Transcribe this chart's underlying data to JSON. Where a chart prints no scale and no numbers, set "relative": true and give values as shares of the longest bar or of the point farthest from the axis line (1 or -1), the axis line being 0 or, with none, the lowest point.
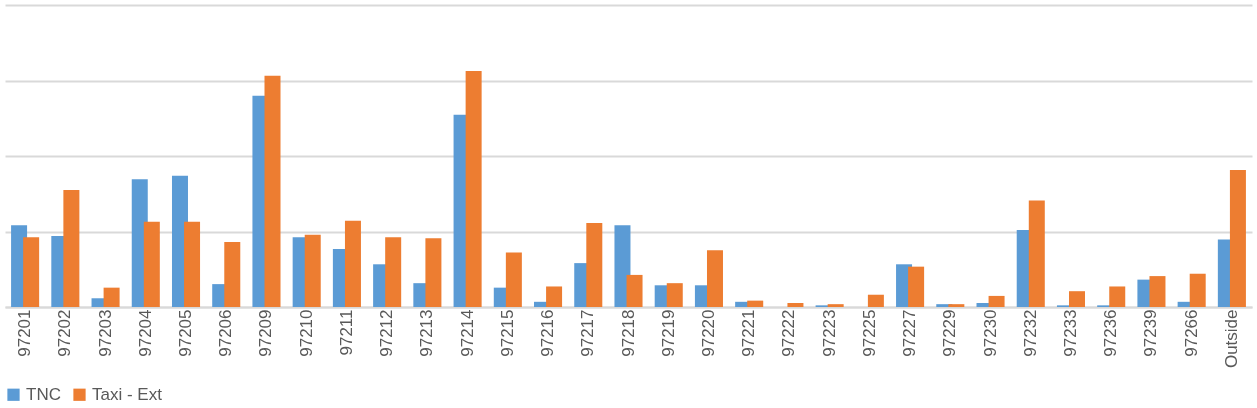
{
  "chart_data": {
    "type": "bar",
    "relative": true,
    "grid": "y",
    "legend": "bottom",
    "categories": [
      "97201",
      "97202",
      "97203",
      "97204",
      "97205",
      "97206",
      "97209",
      "97210",
      "97211",
      "97212",
      "97213",
      "97214",
      "97215",
      "97216",
      "97217",
      "97218",
      "97219",
      "97220",
      "97221",
      "97222",
      "97223",
      "97225",
      "97227",
      "97229",
      "97230",
      "97232",
      "97233",
      "97236",
      "97239",
      "97266",
      "Outside"
    ],
    "series": [
      {
        "name": "TNC",
        "color": "#5b9bd5",
        "values": [
          0.346,
          0.301,
          0.037,
          0.541,
          0.556,
          0.097,
          0.895,
          0.296,
          0.246,
          0.181,
          0.101,
          0.815,
          0.082,
          0.022,
          0.186,
          0.346,
          0.092,
          0.092,
          0.022,
          0,
          0.007,
          0,
          0.181,
          0.012,
          0.017,
          0.326,
          0.007,
          0.007,
          0.116,
          0.022,
          0.286
        ]
      },
      {
        "name": "Taxi - Ext",
        "color": "#ed7d31",
        "values": [
          0.296,
          0.496,
          0.082,
          0.361,
          0.361,
          0.276,
          0.98,
          0.306,
          0.366,
          0.296,
          0.291,
          1,
          0.231,
          0.087,
          0.356,
          0.136,
          0.101,
          0.241,
          0.027,
          0.017,
          0.012,
          0.052,
          0.171,
          0.012,
          0.047,
          0.451,
          0.067,
          0.087,
          0.131,
          0.141,
          0.581
        ]
      }
    ]
  }
}
